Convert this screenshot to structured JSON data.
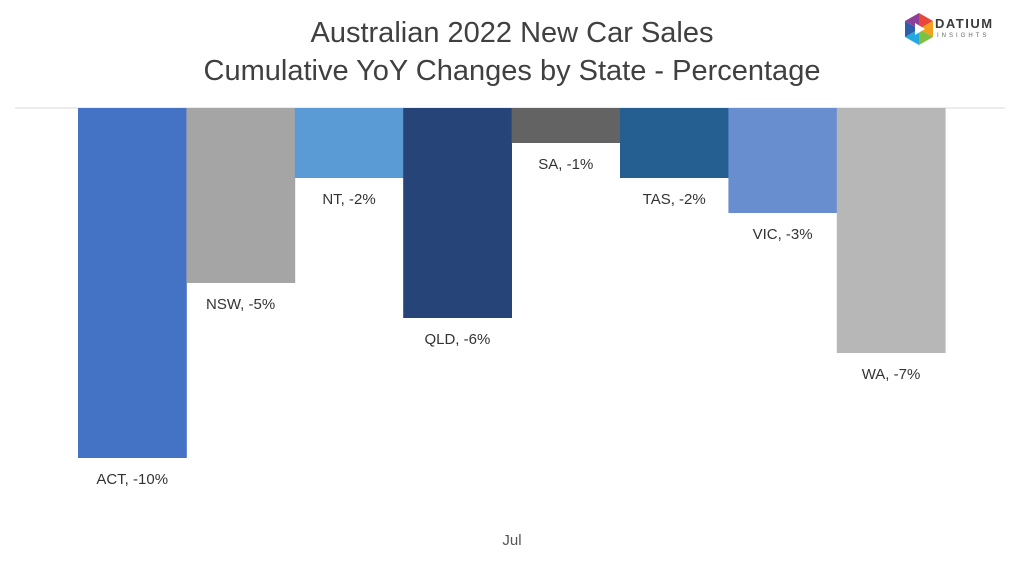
{
  "chart_data": {
    "type": "bar",
    "title": "Australian 2022 New Car Sales",
    "subtitle": "Cumulative YoY Changes by State - Percentage",
    "xlabel": "Jul",
    "ylabel": "",
    "categories": [
      "ACT",
      "NSW",
      "NT",
      "QLD",
      "SA",
      "TAS",
      "VIC",
      "WA"
    ],
    "values": [
      -10,
      -5,
      -2,
      -6,
      -1,
      -2,
      -3,
      -7
    ],
    "data_labels": [
      "ACT, -10%",
      "NSW, -5%",
      "NT, -2%",
      "QLD, -6%",
      "SA, -1%",
      "TAS, -2%",
      "VIC, -3%",
      "WA, -7%"
    ],
    "colors": [
      "#4472C4",
      "#A5A5A5",
      "#5B9BD5",
      "#264478",
      "#636363",
      "#255E91",
      "#698ED0",
      "#B7B7B7"
    ],
    "ylim": [
      -10,
      0
    ],
    "grid": false,
    "legend": "none"
  },
  "logo": {
    "name": "DATIUM",
    "sub": "INSIGHTS"
  }
}
